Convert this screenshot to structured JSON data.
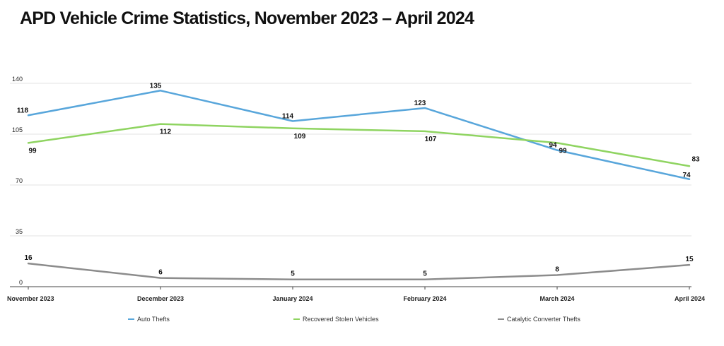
{
  "chart_data": {
    "type": "line",
    "title": "APD Vehicle Crime Statistics, November 2023 – April 2024",
    "xlabel": "",
    "ylabel": "",
    "categories": [
      "November 2023",
      "December 2023",
      "January 2024",
      "February 2024",
      "March 2024",
      "April 2024"
    ],
    "ylim": [
      0,
      140
    ],
    "yticks": [
      "0",
      "35",
      "70",
      "105",
      "140"
    ],
    "grid": true,
    "legend_position": "bottom",
    "series": [
      {
        "name": "Auto Thefts",
        "color": "#58a6db",
        "values": [
          118,
          135,
          114,
          123,
          94,
          74
        ],
        "labels": [
          "118",
          "135",
          "114",
          "123",
          "94",
          "74"
        ]
      },
      {
        "name": "Recovered Stolen Vehicles",
        "color": "#8fd461",
        "values": [
          99,
          112,
          109,
          107,
          99,
          83
        ],
        "labels": [
          "99",
          "112",
          "109",
          "107",
          "99",
          "83"
        ]
      },
      {
        "name": "Catalytic Converter Thefts",
        "color": "#8c8c8c",
        "values": [
          16,
          6,
          5,
          5,
          8,
          15
        ],
        "labels": [
          "16",
          "6",
          "5",
          "5",
          "8",
          "15"
        ]
      }
    ]
  }
}
